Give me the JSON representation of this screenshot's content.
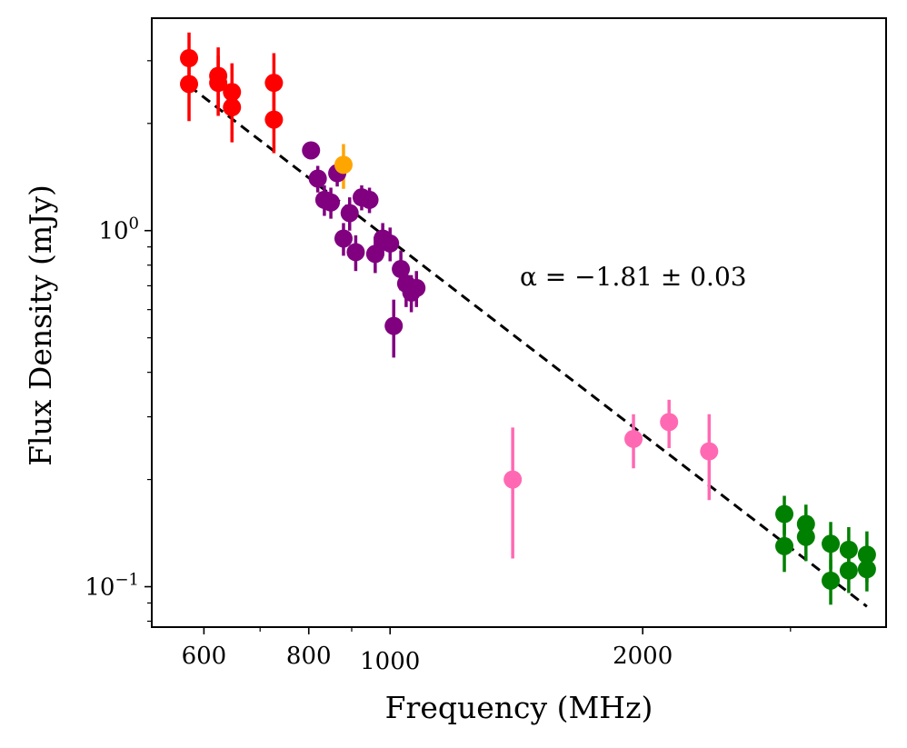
{
  "chart_data": {
    "type": "scatter",
    "title": "",
    "xlabel": "Frequency (MHz)",
    "ylabel": "Flux Density (mJy)",
    "xscale": "log",
    "yscale": "log",
    "xlim": [
      520,
      3900
    ],
    "ylim": [
      0.077,
      3.95
    ],
    "x_ticks": [
      {
        "value": 600,
        "label": "600"
      },
      {
        "value": 800,
        "label": "800"
      },
      {
        "value": 1000,
        "label": "1000"
      },
      {
        "value": 2000,
        "label": "2000"
      }
    ],
    "y_ticks": [
      {
        "value": 1.0,
        "label_base": "10",
        "label_exp": "0"
      },
      {
        "value": 0.1,
        "label_base": "10",
        "label_exp": "−1"
      }
    ],
    "annotation": "α = −1.81 ± 0.03",
    "fit": {
      "spectral_index": -1.81,
      "spectral_index_err": 0.03,
      "x_range": [
        576,
        3700
      ],
      "y_at_start": 2.55,
      "style": "dashed",
      "color": "#000000"
    },
    "series": [
      {
        "name": "red",
        "color": "#ff0000",
        "points": [
          {
            "x": 576,
            "y": 3.05,
            "yerr_low": 0.5,
            "yerr_high": 0.55
          },
          {
            "x": 576,
            "y": 2.58,
            "yerr_low": 0.55,
            "yerr_high": 0.5
          },
          {
            "x": 624,
            "y": 2.72,
            "yerr_low": 0.5,
            "yerr_high": 0.55
          },
          {
            "x": 624,
            "y": 2.6,
            "yerr_low": 0.5,
            "yerr_high": 0.5
          },
          {
            "x": 648,
            "y": 2.45,
            "yerr_low": 0.45,
            "yerr_high": 0.5
          },
          {
            "x": 648,
            "y": 2.22,
            "yerr_low": 0.45,
            "yerr_high": 0.5
          },
          {
            "x": 727,
            "y": 2.6,
            "yerr_low": 0.5,
            "yerr_high": 0.55
          },
          {
            "x": 727,
            "y": 2.05,
            "yerr_low": 0.4,
            "yerr_high": 0.45
          }
        ]
      },
      {
        "name": "purple",
        "color": "#800080",
        "points": [
          {
            "x": 805,
            "y": 1.68,
            "yerr_low": 0.08,
            "yerr_high": 0.08
          },
          {
            "x": 820,
            "y": 1.4,
            "yerr_low": 0.12,
            "yerr_high": 0.12
          },
          {
            "x": 835,
            "y": 1.22,
            "yerr_low": 0.12,
            "yerr_high": 0.12
          },
          {
            "x": 850,
            "y": 1.2,
            "yerr_low": 0.12,
            "yerr_high": 0.12
          },
          {
            "x": 865,
            "y": 1.45,
            "yerr_low": 0.12,
            "yerr_high": 0.12
          },
          {
            "x": 880,
            "y": 0.95,
            "yerr_low": 0.1,
            "yerr_high": 0.1
          },
          {
            "x": 895,
            "y": 1.12,
            "yerr_low": 0.12,
            "yerr_high": 0.12
          },
          {
            "x": 910,
            "y": 0.87,
            "yerr_low": 0.1,
            "yerr_high": 0.1
          },
          {
            "x": 925,
            "y": 1.24,
            "yerr_low": 0.1,
            "yerr_high": 0.1
          },
          {
            "x": 945,
            "y": 1.22,
            "yerr_low": 0.1,
            "yerr_high": 0.1
          },
          {
            "x": 960,
            "y": 0.86,
            "yerr_low": 0.1,
            "yerr_high": 0.1
          },
          {
            "x": 980,
            "y": 0.95,
            "yerr_low": 0.1,
            "yerr_high": 0.1
          },
          {
            "x": 1000,
            "y": 0.92,
            "yerr_low": 0.1,
            "yerr_high": 0.1
          },
          {
            "x": 1010,
            "y": 0.54,
            "yerr_low": 0.1,
            "yerr_high": 0.1
          },
          {
            "x": 1030,
            "y": 0.78,
            "yerr_low": 0.1,
            "yerr_high": 0.1
          },
          {
            "x": 1045,
            "y": 0.71,
            "yerr_low": 0.1,
            "yerr_high": 0.1
          },
          {
            "x": 1060,
            "y": 0.67,
            "yerr_low": 0.08,
            "yerr_high": 0.08
          },
          {
            "x": 1075,
            "y": 0.69,
            "yerr_low": 0.08,
            "yerr_high": 0.08
          }
        ]
      },
      {
        "name": "orange",
        "color": "#ffa500",
        "points": [
          {
            "x": 880,
            "y": 1.53,
            "yerr_low": 0.22,
            "yerr_high": 0.22
          }
        ]
      },
      {
        "name": "pink",
        "color": "#ff69b4",
        "points": [
          {
            "x": 1400,
            "y": 0.2,
            "yerr_low": 0.08,
            "yerr_high": 0.08
          },
          {
            "x": 1950,
            "y": 0.26,
            "yerr_low": 0.045,
            "yerr_high": 0.045
          },
          {
            "x": 2150,
            "y": 0.29,
            "yerr_low": 0.045,
            "yerr_high": 0.045
          },
          {
            "x": 2400,
            "y": 0.24,
            "yerr_low": 0.065,
            "yerr_high": 0.065
          }
        ]
      },
      {
        "name": "green",
        "color": "#008000",
        "points": [
          {
            "x": 2950,
            "y": 0.16,
            "yerr_low": 0.02,
            "yerr_high": 0.02
          },
          {
            "x": 2950,
            "y": 0.13,
            "yerr_low": 0.02,
            "yerr_high": 0.02
          },
          {
            "x": 3130,
            "y": 0.15,
            "yerr_low": 0.02,
            "yerr_high": 0.02
          },
          {
            "x": 3130,
            "y": 0.138,
            "yerr_low": 0.02,
            "yerr_high": 0.02
          },
          {
            "x": 3350,
            "y": 0.132,
            "yerr_low": 0.02,
            "yerr_high": 0.02
          },
          {
            "x": 3350,
            "y": 0.104,
            "yerr_low": 0.015,
            "yerr_high": 0.015
          },
          {
            "x": 3520,
            "y": 0.127,
            "yerr_low": 0.02,
            "yerr_high": 0.02
          },
          {
            "x": 3520,
            "y": 0.111,
            "yerr_low": 0.015,
            "yerr_high": 0.015
          },
          {
            "x": 3700,
            "y": 0.123,
            "yerr_low": 0.02,
            "yerr_high": 0.02
          },
          {
            "x": 3700,
            "y": 0.112,
            "yerr_low": 0.015,
            "yerr_high": 0.015
          }
        ]
      }
    ]
  }
}
